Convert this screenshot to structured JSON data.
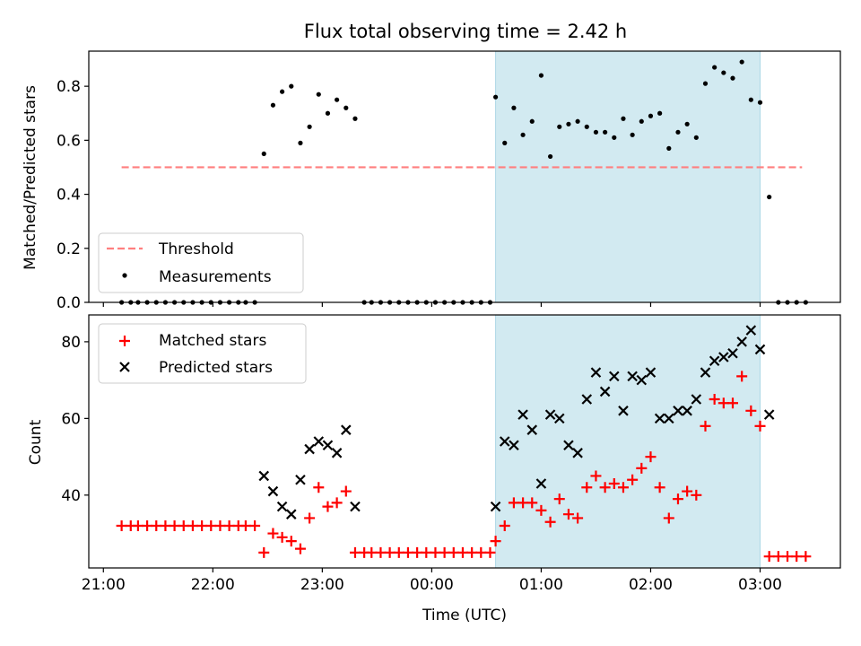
{
  "title": "Flux total observing time = 2.42 h",
  "xlabel": "Time (UTC)",
  "x_ticks": [
    {
      "value": "21:00",
      "label": "21:00"
    },
    {
      "value": "22:00",
      "label": "22:00"
    },
    {
      "value": "23:00",
      "label": "23:00"
    },
    {
      "value": "00:00",
      "label": "00:00"
    },
    {
      "value": "01:00",
      "label": "01:00"
    },
    {
      "value": "02:00",
      "label": "02:00"
    },
    {
      "value": "03:00",
      "label": "03:00"
    }
  ],
  "colors": {
    "shade": "#add8e6",
    "threshold": "#ff7f7f",
    "matched": "#ff0000",
    "predicted": "#000000",
    "measurement": "#000000"
  },
  "chart_data": [
    {
      "type": "scatter",
      "ylabel": "Matched/Predicted stars",
      "xlim": [
        "20:52",
        "03:44"
      ],
      "ylim": [
        0,
        0.93
      ],
      "y_ticks": [
        "0.0",
        "0.2",
        "0.4",
        "0.6",
        "0.8"
      ],
      "shaded_region": {
        "x": [
          "00:35",
          "03:00"
        ]
      },
      "threshold": {
        "name": "Threshold",
        "y": 0.5,
        "x": [
          "21:10",
          "03:23"
        ]
      },
      "legend": {
        "position": "lower-left",
        "entries": [
          "Threshold",
          "Measurements"
        ]
      },
      "series": [
        {
          "name": "Measurements",
          "points": [
            [
              "21:10",
              0
            ],
            [
              "21:15",
              0
            ],
            [
              "21:19",
              0
            ],
            [
              "21:24",
              0
            ],
            [
              "21:29",
              0
            ],
            [
              "21:34",
              0
            ],
            [
              "21:39",
              0
            ],
            [
              "21:44",
              0
            ],
            [
              "21:49",
              0
            ],
            [
              "21:54",
              0
            ],
            [
              "21:59",
              0
            ],
            [
              "22:04",
              0
            ],
            [
              "22:09",
              0
            ],
            [
              "22:14",
              0
            ],
            [
              "22:18",
              0
            ],
            [
              "22:23",
              0
            ],
            [
              "22:28",
              0.55
            ],
            [
              "22:33",
              0.73
            ],
            [
              "22:38",
              0.78
            ],
            [
              "22:43",
              0.8
            ],
            [
              "22:48",
              0.59
            ],
            [
              "22:53",
              0.65
            ],
            [
              "22:58",
              0.77
            ],
            [
              "23:03",
              0.7
            ],
            [
              "23:08",
              0.75
            ],
            [
              "23:13",
              0.72
            ],
            [
              "23:18",
              0.68
            ],
            [
              "23:23",
              0
            ],
            [
              "23:27",
              0
            ],
            [
              "23:32",
              0
            ],
            [
              "23:37",
              0
            ],
            [
              "23:42",
              0
            ],
            [
              "23:47",
              0
            ],
            [
              "23:52",
              0
            ],
            [
              "23:57",
              0
            ],
            [
              "00:02",
              0
            ],
            [
              "00:07",
              0
            ],
            [
              "00:12",
              0
            ],
            [
              "00:17",
              0
            ],
            [
              "00:22",
              0
            ],
            [
              "00:27",
              0
            ],
            [
              "00:32",
              0
            ],
            [
              "00:35",
              0.76
            ],
            [
              "00:40",
              0.59
            ],
            [
              "00:45",
              0.72
            ],
            [
              "00:50",
              0.62
            ],
            [
              "00:55",
              0.67
            ],
            [
              "01:00",
              0.84
            ],
            [
              "01:05",
              0.54
            ],
            [
              "01:10",
              0.65
            ],
            [
              "01:15",
              0.66
            ],
            [
              "01:20",
              0.67
            ],
            [
              "01:25",
              0.65
            ],
            [
              "01:30",
              0.63
            ],
            [
              "01:35",
              0.63
            ],
            [
              "01:40",
              0.61
            ],
            [
              "01:45",
              0.68
            ],
            [
              "01:50",
              0.62
            ],
            [
              "01:55",
              0.67
            ],
            [
              "02:00",
              0.69
            ],
            [
              "02:05",
              0.7
            ],
            [
              "02:10",
              0.57
            ],
            [
              "02:15",
              0.63
            ],
            [
              "02:20",
              0.66
            ],
            [
              "02:25",
              0.61
            ],
            [
              "02:30",
              0.81
            ],
            [
              "02:35",
              0.87
            ],
            [
              "02:40",
              0.85
            ],
            [
              "02:45",
              0.83
            ],
            [
              "02:50",
              0.89
            ],
            [
              "02:55",
              0.75
            ],
            [
              "03:00",
              0.74
            ],
            [
              "03:05",
              0.39
            ],
            [
              "03:10",
              0
            ],
            [
              "03:15",
              0
            ],
            [
              "03:20",
              0
            ],
            [
              "03:25",
              0
            ]
          ]
        }
      ]
    },
    {
      "type": "scatter",
      "ylabel": "Count",
      "xlim": [
        "20:52",
        "03:44"
      ],
      "ylim": [
        21,
        87
      ],
      "y_ticks": [
        "40",
        "60",
        "80"
      ],
      "shaded_region": {
        "x": [
          "00:35",
          "03:00"
        ]
      },
      "legend": {
        "position": "upper-left",
        "entries": [
          "Matched stars",
          "Predicted stars"
        ]
      },
      "series": [
        {
          "name": "Matched stars",
          "marker": "+",
          "points": [
            [
              "21:10",
              32
            ],
            [
              "21:15",
              32
            ],
            [
              "21:19",
              32
            ],
            [
              "21:24",
              32
            ],
            [
              "21:29",
              32
            ],
            [
              "21:34",
              32
            ],
            [
              "21:39",
              32
            ],
            [
              "21:44",
              32
            ],
            [
              "21:49",
              32
            ],
            [
              "21:54",
              32
            ],
            [
              "21:59",
              32
            ],
            [
              "22:04",
              32
            ],
            [
              "22:09",
              32
            ],
            [
              "22:14",
              32
            ],
            [
              "22:18",
              32
            ],
            [
              "22:23",
              32
            ],
            [
              "22:28",
              25
            ],
            [
              "22:33",
              30
            ],
            [
              "22:38",
              29
            ],
            [
              "22:43",
              28
            ],
            [
              "22:48",
              26
            ],
            [
              "22:53",
              34
            ],
            [
              "22:58",
              42
            ],
            [
              "23:03",
              37
            ],
            [
              "23:08",
              38
            ],
            [
              "23:13",
              41
            ],
            [
              "23:18",
              25
            ],
            [
              "23:23",
              25
            ],
            [
              "23:27",
              25
            ],
            [
              "23:32",
              25
            ],
            [
              "23:37",
              25
            ],
            [
              "23:42",
              25
            ],
            [
              "23:47",
              25
            ],
            [
              "23:52",
              25
            ],
            [
              "23:57",
              25
            ],
            [
              "00:02",
              25
            ],
            [
              "00:07",
              25
            ],
            [
              "00:12",
              25
            ],
            [
              "00:17",
              25
            ],
            [
              "00:22",
              25
            ],
            [
              "00:27",
              25
            ],
            [
              "00:32",
              25
            ],
            [
              "00:35",
              28
            ],
            [
              "00:40",
              32
            ],
            [
              "00:45",
              38
            ],
            [
              "00:50",
              38
            ],
            [
              "00:55",
              38
            ],
            [
              "01:00",
              36
            ],
            [
              "01:05",
              33
            ],
            [
              "01:10",
              39
            ],
            [
              "01:15",
              35
            ],
            [
              "01:20",
              34
            ],
            [
              "01:25",
              42
            ],
            [
              "01:30",
              45
            ],
            [
              "01:35",
              42
            ],
            [
              "01:40",
              43
            ],
            [
              "01:45",
              42
            ],
            [
              "01:50",
              44
            ],
            [
              "01:55",
              47
            ],
            [
              "02:00",
              50
            ],
            [
              "02:05",
              42
            ],
            [
              "02:10",
              34
            ],
            [
              "02:15",
              39
            ],
            [
              "02:20",
              41
            ],
            [
              "02:25",
              40
            ],
            [
              "02:30",
              58
            ],
            [
              "02:35",
              65
            ],
            [
              "02:40",
              64
            ],
            [
              "02:45",
              64
            ],
            [
              "02:50",
              71
            ],
            [
              "02:55",
              62
            ],
            [
              "03:00",
              58
            ],
            [
              "03:05",
              24
            ],
            [
              "03:10",
              24
            ],
            [
              "03:15",
              24
            ],
            [
              "03:20",
              24
            ],
            [
              "03:25",
              24
            ]
          ]
        },
        {
          "name": "Predicted stars",
          "marker": "x",
          "points": [
            [
              "22:28",
              45
            ],
            [
              "22:33",
              41
            ],
            [
              "22:38",
              37
            ],
            [
              "22:43",
              35
            ],
            [
              "22:48",
              44
            ],
            [
              "22:53",
              52
            ],
            [
              "22:58",
              54
            ],
            [
              "23:03",
              53
            ],
            [
              "23:08",
              51
            ],
            [
              "23:13",
              57
            ],
            [
              "23:18",
              37
            ],
            [
              "00:35",
              37
            ],
            [
              "00:40",
              54
            ],
            [
              "00:45",
              53
            ],
            [
              "00:50",
              61
            ],
            [
              "00:55",
              57
            ],
            [
              "01:00",
              43
            ],
            [
              "01:05",
              61
            ],
            [
              "01:10",
              60
            ],
            [
              "01:15",
              53
            ],
            [
              "01:20",
              51
            ],
            [
              "01:25",
              65
            ],
            [
              "01:30",
              72
            ],
            [
              "01:35",
              67
            ],
            [
              "01:40",
              71
            ],
            [
              "01:45",
              62
            ],
            [
              "01:50",
              71
            ],
            [
              "01:55",
              70
            ],
            [
              "02:00",
              72
            ],
            [
              "02:05",
              60
            ],
            [
              "02:10",
              60
            ],
            [
              "02:15",
              62
            ],
            [
              "02:20",
              62
            ],
            [
              "02:25",
              65
            ],
            [
              "02:30",
              72
            ],
            [
              "02:35",
              75
            ],
            [
              "02:40",
              76
            ],
            [
              "02:45",
              77
            ],
            [
              "02:50",
              80
            ],
            [
              "02:55",
              83
            ],
            [
              "03:00",
              78
            ],
            [
              "03:05",
              61
            ]
          ]
        }
      ]
    }
  ]
}
